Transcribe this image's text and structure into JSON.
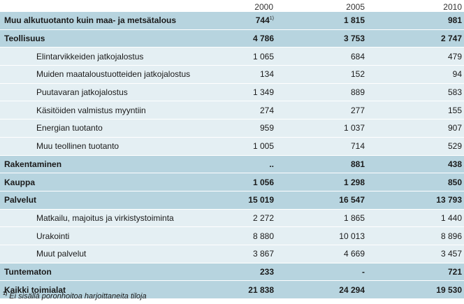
{
  "table": {
    "years": [
      "2000",
      "2005",
      "2010"
    ],
    "rows": [
      {
        "label": "Muu alkutuotanto kuin maa- ja metsätalous",
        "y2000": "744",
        "y2000_sup": "1)",
        "y2005": "1 815",
        "y2010": "981",
        "level": "main"
      },
      {
        "label": "Teollisuus",
        "y2000": "4 786",
        "y2005": "3 753",
        "y2010": "2 747",
        "level": "main"
      },
      {
        "label": "Elintarvikkeiden jatkojalostus",
        "y2000": "1 065",
        "y2005": "684",
        "y2010": "479",
        "level": "sub"
      },
      {
        "label": "Muiden maataloustuotteiden jatkojalostus",
        "y2000": "134",
        "y2005": "152",
        "y2010": "94",
        "level": "sub"
      },
      {
        "label": "Puutavaran jatkojalostus",
        "y2000": "1 349",
        "y2005": "889",
        "y2010": "583",
        "level": "sub"
      },
      {
        "label": "Käsitöiden valmistus myyntiin",
        "y2000": "274",
        "y2005": "277",
        "y2010": "155",
        "level": "sub"
      },
      {
        "label": "Energian tuotanto",
        "y2000": "959",
        "y2005": "1 037",
        "y2010": "907",
        "level": "sub"
      },
      {
        "label": "Muu teollinen tuotanto",
        "y2000": "1 005",
        "y2005": "714",
        "y2010": "529",
        "level": "sub"
      },
      {
        "label": "Rakentaminen",
        "y2000": "..",
        "y2005": "881",
        "y2010": "438",
        "level": "main"
      },
      {
        "label": "Kauppa",
        "y2000": "1 056",
        "y2005": "1 298",
        "y2010": "850",
        "level": "main"
      },
      {
        "label": "Palvelut",
        "y2000": "15 019",
        "y2005": "16 547",
        "y2010": "13 793",
        "level": "main"
      },
      {
        "label": "Matkailu, majoitus ja virkistystoiminta",
        "y2000": "2 272",
        "y2005": "1 865",
        "y2010": "1 440",
        "level": "sub"
      },
      {
        "label": "Urakointi",
        "y2000": "8 880",
        "y2005": "10 013",
        "y2010": "8 896",
        "level": "sub"
      },
      {
        "label": "Muut palvelut",
        "y2000": "3 867",
        "y2005": "4 669",
        "y2010": "3 457",
        "level": "sub"
      },
      {
        "label": "Tuntematon",
        "y2000": "233",
        "y2005": "-",
        "y2010": "721",
        "level": "main"
      },
      {
        "label": "Kaikki toimialat",
        "y2000": "21 838",
        "y2005": "24 294",
        "y2010": "19 530",
        "level": "main"
      }
    ]
  },
  "footnote": {
    "marker": "1)",
    "text": "Ei sisällä poronhoitoa harjoittaneita tiloja"
  },
  "colors": {
    "main_row": "#b7d4df",
    "sub_row": "#e4eff3"
  }
}
